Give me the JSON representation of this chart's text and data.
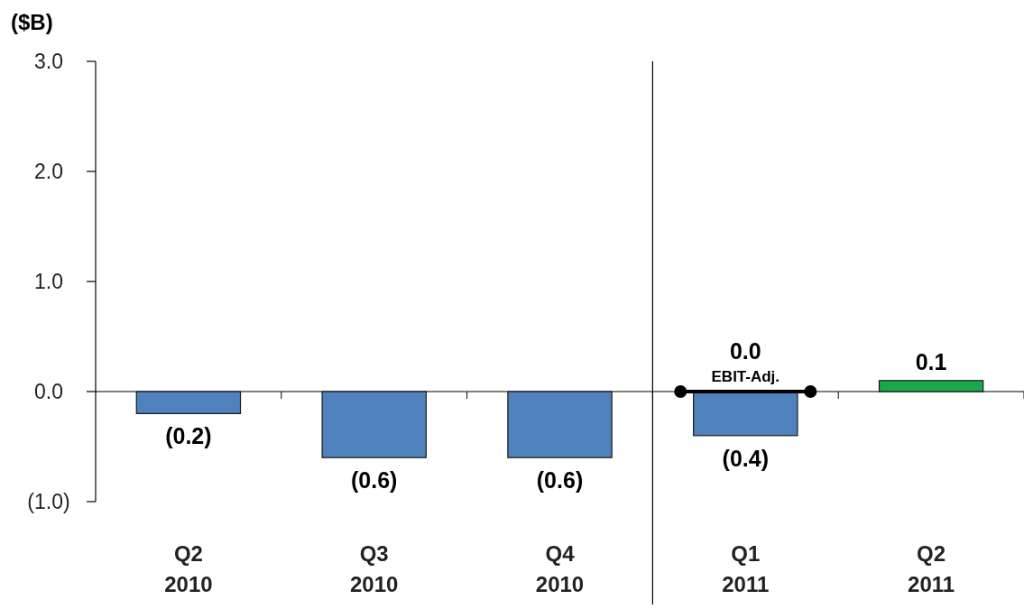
{
  "chart_data": {
    "type": "bar",
    "ylabel": "($B)",
    "categories": [
      "Q2\n2010",
      "Q3\n2010",
      "Q4\n2010",
      "Q1\n2011",
      "Q2\n2011"
    ],
    "series": [
      {
        "values": [
          -0.2,
          -0.6,
          -0.6,
          -0.4,
          0.1
        ],
        "colors": [
          "#4f81bd",
          "#4f81bd",
          "#4f81bd",
          "#4f81bd",
          "#19a84a"
        ],
        "value_labels": [
          "(0.2)",
          "(0.6)",
          "(0.6)",
          "(0.4)",
          "0.1"
        ]
      }
    ],
    "annotations": [
      {
        "text": "0.0",
        "x": "Q1\n2011",
        "y": 0
      },
      {
        "text": "EBIT-Adj.",
        "x": "Q1\n2011",
        "y": 0
      }
    ],
    "ylim": [
      -1,
      3
    ],
    "yticks": [
      {
        "value": -1,
        "label": "(1.0)"
      },
      {
        "value": 0,
        "label": "0.0"
      },
      {
        "value": 1,
        "label": "1.0"
      },
      {
        "value": 2,
        "label": "2.0"
      },
      {
        "value": 3,
        "label": "3.0"
      }
    ]
  }
}
